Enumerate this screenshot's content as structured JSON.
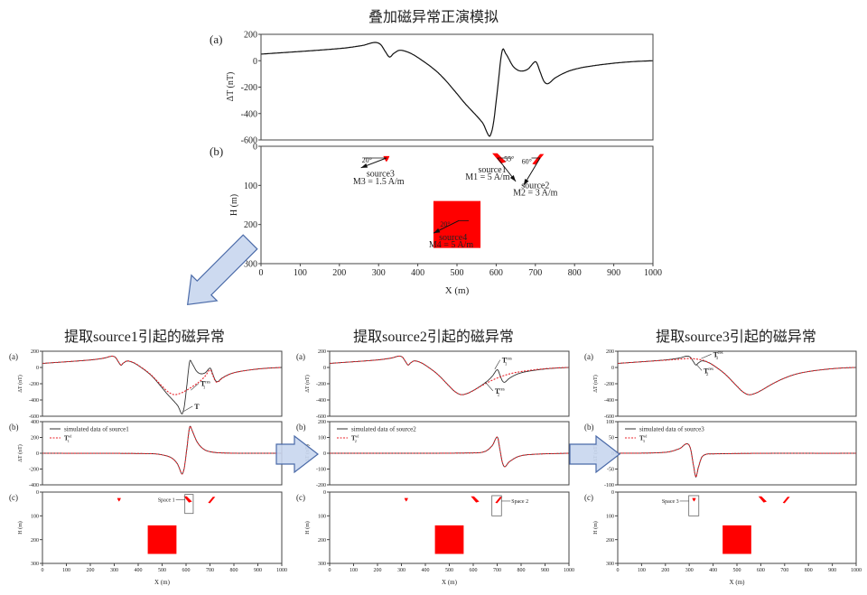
{
  "title": "叠加磁异常正演模拟",
  "top": {
    "label_a": "(a)",
    "label_b": "(b)",
    "ylabel_a": "ΔT (nT)",
    "ylabel_b": "H (m)",
    "xlabel": "X (m)",
    "sources": [
      {
        "name": "source1",
        "moment": "M1 = 5 A/m",
        "angle": "55°"
      },
      {
        "name": "source2",
        "moment": "M2 = 3 A/m",
        "angle": "60°"
      },
      {
        "name": "source3",
        "moment": "M3 = 1.5 A/m",
        "angle": "20°"
      },
      {
        "name": "source4",
        "moment": "M4 = 5 A/m",
        "angle": "20°"
      }
    ]
  },
  "panels": [
    {
      "title": "提取source1引起的磁异常",
      "label_a": "(a)",
      "label_b": "(b)",
      "label_c": "(c)",
      "ylabel_ab": "ΔT (nT)",
      "ylabel_c": "H (m)",
      "xlabel": "X (m)",
      "legend_line": "simulated data of source1",
      "legend_sym": {
        "base": "T",
        "sub": "1",
        "sup": "sd"
      },
      "curve_labels": [
        {
          "base": "T",
          "sub": "",
          "sup": ""
        },
        {
          "base": "T",
          "sub": "1",
          "sup": "res"
        }
      ],
      "space": "Space 1"
    },
    {
      "title": "提取source2引起的磁异常",
      "label_a": "(a)",
      "label_b": "(b)",
      "label_c": "(c)",
      "ylabel_ab": "ΔT (nT)",
      "ylabel_c": "H (m)",
      "xlabel": "X (m)",
      "legend_line": "simulated data of source2",
      "legend_sym": {
        "base": "T",
        "sub": "2",
        "sup": "sd"
      },
      "curve_labels": [
        {
          "base": "T",
          "sub": "1",
          "sup": "res"
        },
        {
          "base": "T",
          "sub": "2",
          "sup": "res"
        }
      ],
      "space": "Space 2"
    },
    {
      "title": "提取source3引起的磁异常",
      "label_a": "(a)",
      "label_b": "(b)",
      "label_c": "(c)",
      "ylabel_ab": "ΔT (nT)",
      "ylabel_c": "H (m)",
      "xlabel": "X (m)",
      "legend_line": "simulated data of source3",
      "legend_sym": {
        "base": "T",
        "sub": "3",
        "sup": "sd"
      },
      "curve_labels": [
        {
          "base": "T",
          "sub": "3",
          "sup": "res"
        },
        {
          "base": "T",
          "sub": "2",
          "sup": "res"
        }
      ],
      "space": "Space 3"
    }
  ],
  "colors": {
    "observed": "#333333",
    "extracted": "#e8232a",
    "body": "#ff0000",
    "arrow_fill": "#c8d6ee",
    "arrow_stroke": "#4a6aa8"
  },
  "chart_data": {
    "type": "line",
    "x_range": [
      0,
      1000
    ],
    "x_ticks": [
      0,
      100,
      200,
      300,
      400,
      500,
      600,
      700,
      800,
      900,
      1000
    ],
    "top_a": {
      "ylim": [
        -600,
        200
      ],
      "yticks": [
        200,
        0,
        -200,
        -400,
        -600
      ],
      "series": [
        "s1",
        "s2",
        "s3",
        "s4"
      ]
    },
    "depth": {
      "ylim": [
        0,
        300
      ],
      "yticks": [
        0,
        100,
        200,
        300
      ]
    },
    "components": {
      "s1": [
        [
          0,
          0
        ],
        [
          450,
          -5
        ],
        [
          500,
          -20
        ],
        [
          540,
          -60
        ],
        [
          565,
          -140
        ],
        [
          580,
          -250
        ],
        [
          585,
          -260
        ],
        [
          593,
          -180
        ],
        [
          603,
          50
        ],
        [
          615,
          330
        ],
        [
          625,
          290
        ],
        [
          645,
          150
        ],
        [
          670,
          60
        ],
        [
          700,
          20
        ],
        [
          760,
          3
        ],
        [
          1000,
          0
        ]
      ],
      "s2": [
        [
          0,
          0
        ],
        [
          600,
          2
        ],
        [
          650,
          12
        ],
        [
          680,
          50
        ],
        [
          697,
          100
        ],
        [
          703,
          95
        ],
        [
          712,
          20
        ],
        [
          722,
          -60
        ],
        [
          732,
          -85
        ],
        [
          750,
          -55
        ],
        [
          790,
          -20
        ],
        [
          850,
          -7
        ],
        [
          1000,
          0
        ]
      ],
      "s3": [
        [
          0,
          0
        ],
        [
          200,
          3
        ],
        [
          260,
          15
        ],
        [
          290,
          30
        ],
        [
          305,
          15
        ],
        [
          318,
          -40
        ],
        [
          328,
          -75
        ],
        [
          338,
          -45
        ],
        [
          355,
          -10
        ],
        [
          400,
          -2
        ],
        [
          1000,
          0
        ]
      ],
      "s4": [
        [
          0,
          50
        ],
        [
          100,
          70
        ],
        [
          200,
          90
        ],
        [
          250,
          100
        ],
        [
          300,
          110
        ],
        [
          350,
          95
        ],
        [
          375,
          70
        ],
        [
          400,
          30
        ],
        [
          450,
          -80
        ],
        [
          500,
          -230
        ],
        [
          525,
          -300
        ],
        [
          550,
          -335
        ],
        [
          575,
          -320
        ],
        [
          600,
          -285
        ],
        [
          650,
          -200
        ],
        [
          700,
          -130
        ],
        [
          750,
          -80
        ],
        [
          800,
          -50
        ],
        [
          850,
          -30
        ],
        [
          900,
          -15
        ],
        [
          950,
          -5
        ],
        [
          1000,
          0
        ]
      ]
    },
    "bodies": {
      "source1": [
        [
          590,
          18
        ],
        [
          603,
          18
        ],
        [
          625,
          40
        ],
        [
          612,
          44
        ]
      ],
      "source2": [
        [
          712,
          20
        ],
        [
          722,
          20
        ],
        [
          700,
          47
        ],
        [
          692,
          45
        ]
      ],
      "source3": [
        [
          312,
          25
        ],
        [
          328,
          25
        ],
        [
          324,
          34
        ],
        [
          320,
          40
        ],
        [
          316,
          34
        ]
      ],
      "source4": [
        [
          440,
          140
        ],
        [
          560,
          140
        ],
        [
          560,
          260
        ],
        [
          440,
          260
        ]
      ]
    },
    "panels": [
      {
        "a_black": [
          "s1",
          "s2",
          "s3",
          "s4"
        ],
        "a_red": [
          "s2",
          "s3",
          "s4"
        ],
        "b_series": "s1",
        "b_ylim": [
          -400,
          400
        ],
        "b_yticks": [
          400,
          200,
          0,
          -200,
          -400
        ],
        "a_ylim": [
          -600,
          200
        ],
        "a_yticks": [
          200,
          0,
          -200,
          -400,
          -600
        ],
        "space_box": [
          595,
          10,
          630,
          90
        ]
      },
      {
        "a_black": [
          "s2",
          "s3",
          "s4"
        ],
        "a_red": [
          "s3",
          "s4"
        ],
        "b_series": "s2",
        "b_ylim": [
          -200,
          200
        ],
        "b_yticks": [
          200,
          100,
          0,
          -100,
          -200
        ],
        "a_ylim": [
          -600,
          200
        ],
        "a_yticks": [
          200,
          0,
          -200,
          -400,
          -600
        ],
        "space_box": [
          678,
          15,
          718,
          100
        ]
      },
      {
        "a_black": [
          "s3",
          "s4"
        ],
        "a_red": [
          "s4"
        ],
        "b_series": "s3",
        "b_ylim": [
          -100,
          100
        ],
        "b_yticks": [
          100,
          50,
          0,
          -50,
          -100
        ],
        "a_ylim": [
          -600,
          200
        ],
        "a_yticks": [
          200,
          0,
          -200,
          -400,
          -600
        ],
        "space_box": [
          298,
          15,
          340,
          100
        ]
      }
    ]
  }
}
